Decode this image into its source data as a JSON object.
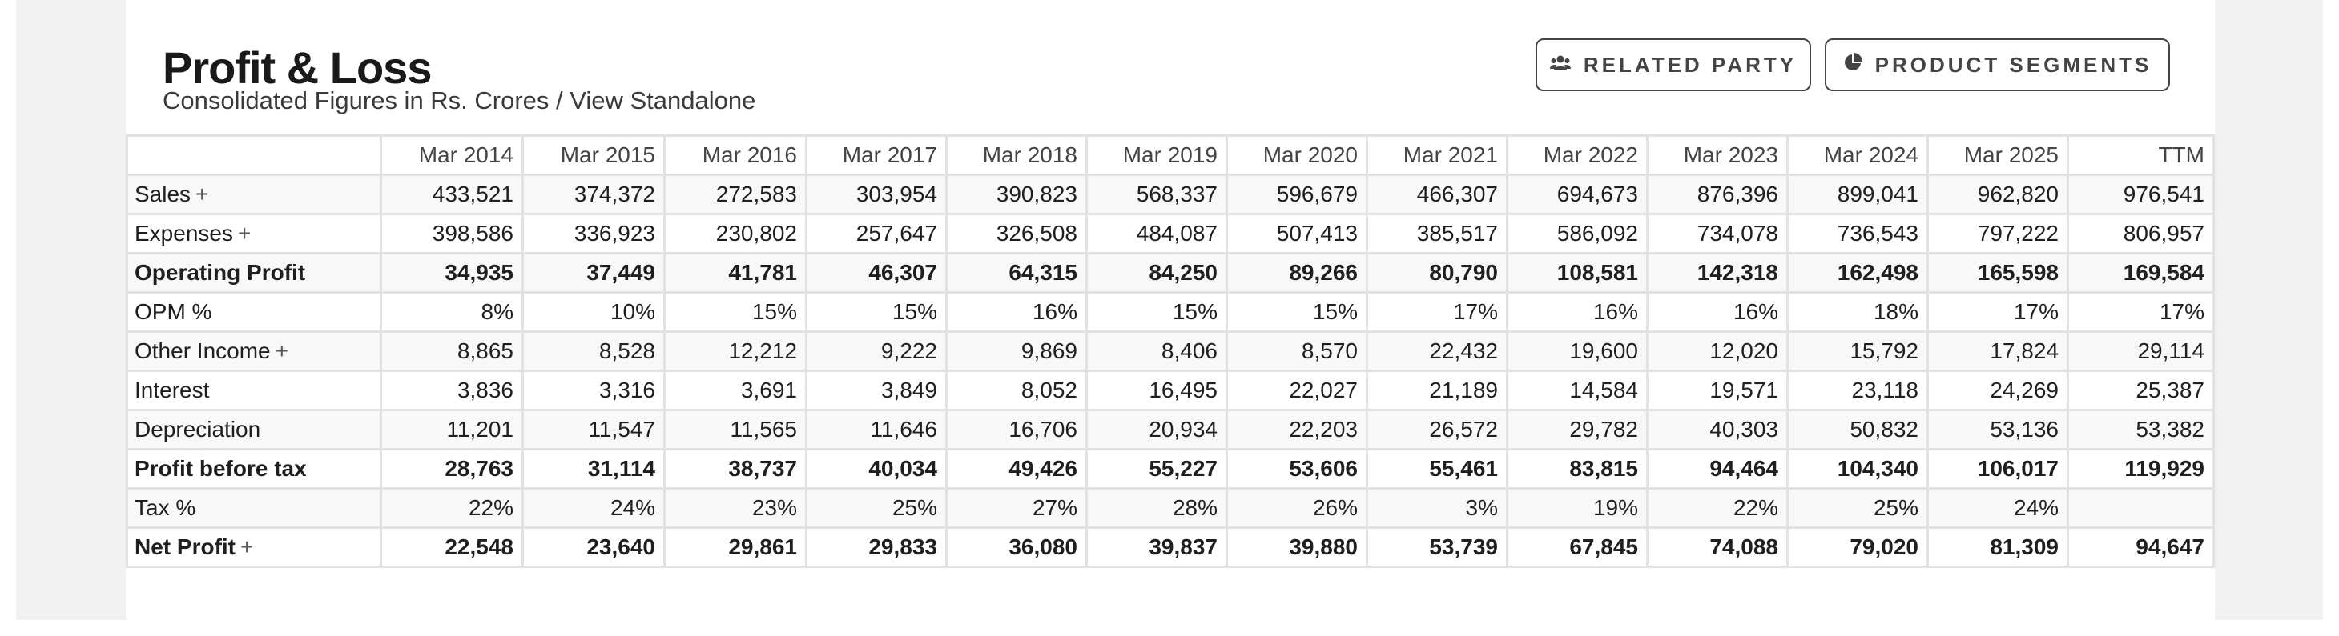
{
  "header": {
    "title": "Profit & Loss",
    "subtitle_prefix": "Consolidated Figures in Rs. Crores / ",
    "subtitle_link": "View Standalone"
  },
  "buttons": {
    "related_party": "RELATED PARTY",
    "product_segments": "PRODUCT SEGMENTS"
  },
  "table": {
    "columns": [
      "Mar 2014",
      "Mar 2015",
      "Mar 2016",
      "Mar 2017",
      "Mar 2018",
      "Mar 2019",
      "Mar 2020",
      "Mar 2021",
      "Mar 2022",
      "Mar 2023",
      "Mar 2024",
      "Mar 2025",
      "TTM"
    ],
    "rows": [
      {
        "label": "Sales",
        "expandable": true,
        "bold": false,
        "values": [
          "433,521",
          "374,372",
          "272,583",
          "303,954",
          "390,823",
          "568,337",
          "596,679",
          "466,307",
          "694,673",
          "876,396",
          "899,041",
          "962,820",
          "976,541"
        ]
      },
      {
        "label": "Expenses",
        "expandable": true,
        "bold": false,
        "values": [
          "398,586",
          "336,923",
          "230,802",
          "257,647",
          "326,508",
          "484,087",
          "507,413",
          "385,517",
          "586,092",
          "734,078",
          "736,543",
          "797,222",
          "806,957"
        ]
      },
      {
        "label": "Operating Profit",
        "expandable": false,
        "bold": true,
        "values": [
          "34,935",
          "37,449",
          "41,781",
          "46,307",
          "64,315",
          "84,250",
          "89,266",
          "80,790",
          "108,581",
          "142,318",
          "162,498",
          "165,598",
          "169,584"
        ]
      },
      {
        "label": "OPM %",
        "expandable": false,
        "bold": false,
        "values": [
          "8%",
          "10%",
          "15%",
          "15%",
          "16%",
          "15%",
          "15%",
          "17%",
          "16%",
          "16%",
          "18%",
          "17%",
          "17%"
        ]
      },
      {
        "label": "Other Income",
        "expandable": true,
        "bold": false,
        "values": [
          "8,865",
          "8,528",
          "12,212",
          "9,222",
          "9,869",
          "8,406",
          "8,570",
          "22,432",
          "19,600",
          "12,020",
          "15,792",
          "17,824",
          "29,114"
        ]
      },
      {
        "label": "Interest",
        "expandable": false,
        "bold": false,
        "values": [
          "3,836",
          "3,316",
          "3,691",
          "3,849",
          "8,052",
          "16,495",
          "22,027",
          "21,189",
          "14,584",
          "19,571",
          "23,118",
          "24,269",
          "25,387"
        ]
      },
      {
        "label": "Depreciation",
        "expandable": false,
        "bold": false,
        "values": [
          "11,201",
          "11,547",
          "11,565",
          "11,646",
          "16,706",
          "20,934",
          "22,203",
          "26,572",
          "29,782",
          "40,303",
          "50,832",
          "53,136",
          "53,382"
        ]
      },
      {
        "label": "Profit before tax",
        "expandable": false,
        "bold": true,
        "values": [
          "28,763",
          "31,114",
          "38,737",
          "40,034",
          "49,426",
          "55,227",
          "53,606",
          "55,461",
          "83,815",
          "94,464",
          "104,340",
          "106,017",
          "119,929"
        ]
      },
      {
        "label": "Tax %",
        "expandable": false,
        "bold": false,
        "values": [
          "22%",
          "24%",
          "23%",
          "25%",
          "27%",
          "28%",
          "26%",
          "3%",
          "19%",
          "22%",
          "25%",
          "24%",
          ""
        ]
      },
      {
        "label": "Net Profit",
        "expandable": true,
        "bold": true,
        "values": [
          "22,548",
          "23,640",
          "29,861",
          "29,833",
          "36,080",
          "39,837",
          "39,880",
          "53,739",
          "67,845",
          "74,088",
          "79,020",
          "81,309",
          "94,647"
        ]
      }
    ]
  },
  "expand_symbol": "+"
}
